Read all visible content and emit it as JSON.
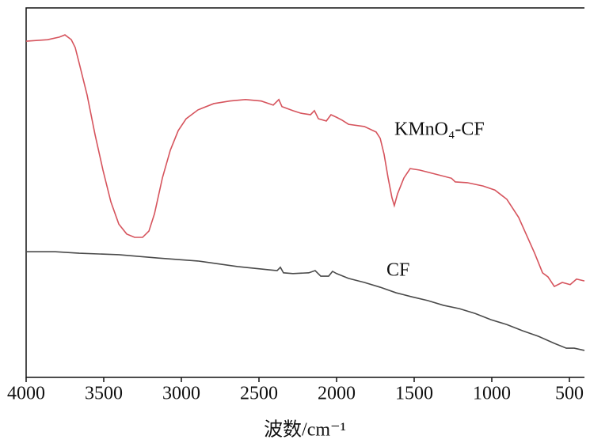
{
  "chart_data": {
    "type": "line",
    "x_label": "波数/cm⁻¹",
    "xlim": [
      4000,
      403
    ],
    "ylim": [
      0,
      100
    ],
    "xticks": [
      4000,
      3500,
      3000,
      2500,
      2000,
      1500,
      1000,
      500
    ],
    "series": [
      {
        "name": "KMnO₄-CF",
        "color": "#d6545d",
        "x": [
          4000,
          3862,
          3786,
          3750,
          3709,
          3684,
          3658,
          3607,
          3556,
          3505,
          3454,
          3403,
          3352,
          3301,
          3250,
          3209,
          3173,
          3122,
          3071,
          3020,
          2969,
          2893,
          2791,
          2689,
          2587,
          2485,
          2408,
          2372,
          2352,
          2281,
          2230,
          2168,
          2143,
          2117,
          2066,
          2036,
          2000,
          1964,
          1923,
          1821,
          1745,
          1719,
          1694,
          1668,
          1643,
          1628,
          1607,
          1566,
          1526,
          1464,
          1362,
          1260,
          1235,
          1158,
          1056,
          980,
          903,
          827,
          776,
          724,
          673,
          638,
          597,
          546,
          495,
          454,
          403
        ],
        "values": [
          91.0,
          91.4,
          92.1,
          92.7,
          91.4,
          89.3,
          85.0,
          76.4,
          65.7,
          56.1,
          47.5,
          41.5,
          38.8,
          37.9,
          37.9,
          39.6,
          44.3,
          54.0,
          61.5,
          66.8,
          70.0,
          72.4,
          74.1,
          74.8,
          75.2,
          74.8,
          73.7,
          75.2,
          73.3,
          72.2,
          71.5,
          71.1,
          72.2,
          70.0,
          69.4,
          71.1,
          70.4,
          69.6,
          68.5,
          67.9,
          66.4,
          64.7,
          60.4,
          54.0,
          48.6,
          46.5,
          49.7,
          54.0,
          56.5,
          56.1,
          55.0,
          53.9,
          52.9,
          52.7,
          51.8,
          50.7,
          48.2,
          43.3,
          38.5,
          33.6,
          28.3,
          27.2,
          24.6,
          25.7,
          25.1,
          26.6,
          26.1
        ]
      },
      {
        "name": "CF",
        "color": "#4a4a4a",
        "x": [
          4000,
          3811,
          3658,
          3403,
          3148,
          2893,
          2638,
          2434,
          2383,
          2362,
          2342,
          2281,
          2179,
          2138,
          2102,
          2051,
          2026,
          2000,
          1923,
          1821,
          1719,
          1617,
          1515,
          1413,
          1311,
          1209,
          1107,
          1005,
          903,
          801,
          699,
          597,
          520,
          469,
          403
        ],
        "values": [
          34.0,
          34.0,
          33.6,
          33.2,
          32.3,
          31.5,
          30.0,
          29.1,
          28.9,
          29.8,
          28.3,
          28.1,
          28.3,
          28.9,
          27.4,
          27.4,
          28.7,
          28.1,
          26.8,
          25.7,
          24.4,
          22.9,
          21.8,
          20.8,
          19.5,
          18.6,
          17.3,
          15.6,
          14.3,
          12.6,
          11.1,
          9.2,
          7.9,
          7.9,
          7.3
        ]
      }
    ]
  }
}
